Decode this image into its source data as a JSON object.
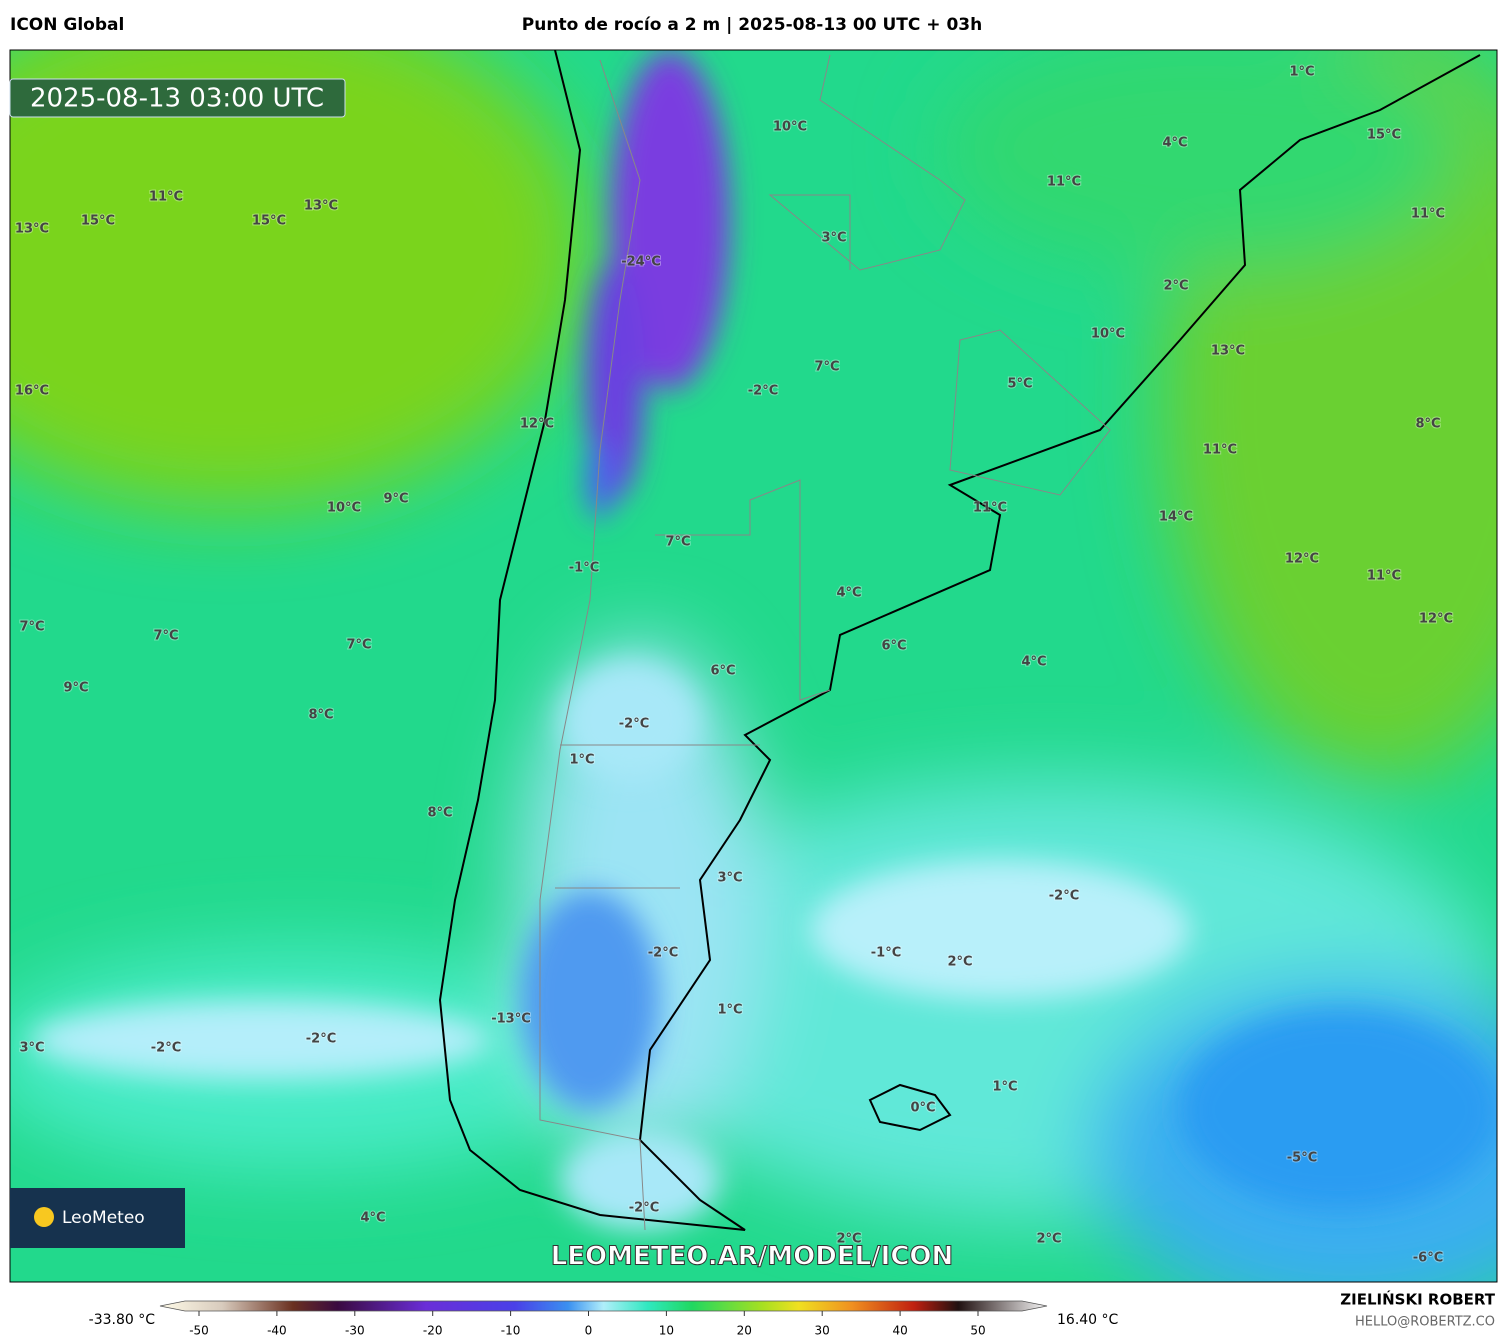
{
  "header": {
    "model": "ICON Global",
    "title": "Punto de rocío a 2 m | 2025-08-13 00 UTC + 03h"
  },
  "map": {
    "timestamp": "2025-08-13 03:00 UTC",
    "watermark": "LEOMETEO.AR/MODEL/ICON",
    "logo": "LeoMeteo",
    "labels": [
      "1°C",
      "10°C",
      "15°C",
      "4°C",
      "11°C",
      "11°C",
      "13°C",
      "15°C",
      "15°C",
      "13°C",
      "11°C",
      "3°C",
      "-24°C",
      "2°C",
      "10°C",
      "13°C",
      "7°C",
      "5°C",
      "16°C",
      "-2°C",
      "12°C",
      "8°C",
      "11°C",
      "10°C",
      "9°C",
      "11°C",
      "14°C",
      "7°C",
      "-1°C",
      "12°C",
      "11°C",
      "4°C",
      "7°C",
      "7°C",
      "7°C",
      "12°C",
      "6°C",
      "4°C",
      "6°C",
      "9°C",
      "8°C",
      "-2°C",
      "1°C",
      "8°C",
      "3°C",
      "-2°C",
      "-2°C",
      "-1°C",
      "2°C",
      "1°C",
      "-13°C",
      "3°C",
      "-2°C",
      "-2°C",
      "1°C",
      "0°C",
      "-5°C",
      "4°C",
      "-2°C",
      "2°C",
      "2°C",
      "-6°C"
    ]
  },
  "colorbar": {
    "min_label": "-33.80 °C",
    "max_label": "16.40 °C",
    "ticks": [
      -50,
      -40,
      -30,
      -20,
      -10,
      0,
      10,
      20,
      30,
      40,
      50
    ]
  },
  "credits": {
    "author": "ZIELIŃSKI ROBERT",
    "contact": "HELLO@ROBERTZ.CO"
  }
}
